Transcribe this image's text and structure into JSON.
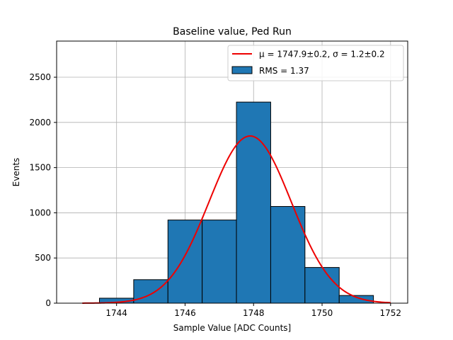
{
  "chart_data": {
    "type": "bar",
    "title": "Baseline value, Ped Run",
    "xlabel": "Sample Value [ADC Counts]",
    "ylabel": "Events",
    "xlim": [
      1742.25,
      1752.5
    ],
    "ylim": [
      0,
      2900
    ],
    "grid": true,
    "legend_position": "top-right",
    "x_ticks": [
      1744,
      1746,
      1748,
      1750,
      1752
    ],
    "y_ticks": [
      0,
      500,
      1000,
      1500,
      2000,
      2500
    ],
    "histogram": {
      "name": "RMS = 1.37",
      "color": "#1f77b4",
      "edgecolor": "#000000",
      "bins": [
        {
          "x0": 1743.5,
          "x1": 1744.5,
          "count": 55
        },
        {
          "x0": 1744.5,
          "x1": 1745.5,
          "count": 260
        },
        {
          "x0": 1745.5,
          "x1": 1746.5,
          "count": 920
        },
        {
          "x0": 1746.5,
          "x1": 1747.5,
          "count": 920
        },
        {
          "x0": 1747.5,
          "x1": 1748.5,
          "count": 2225
        },
        {
          "x0": 1748.5,
          "x1": 1749.5,
          "count": 1070
        },
        {
          "x0": 1749.5,
          "x1": 1750.5,
          "count": 395
        },
        {
          "x0": 1750.5,
          "x1": 1751.5,
          "count": 85
        }
      ]
    },
    "fit": {
      "name": "μ = 1747.9±0.2, σ = 1.2±0.2",
      "color": "#ee0000",
      "mu": 1747.9,
      "sigma": 1.2,
      "amplitude": 1850,
      "x_range": [
        1743.0,
        1752.0
      ]
    }
  }
}
